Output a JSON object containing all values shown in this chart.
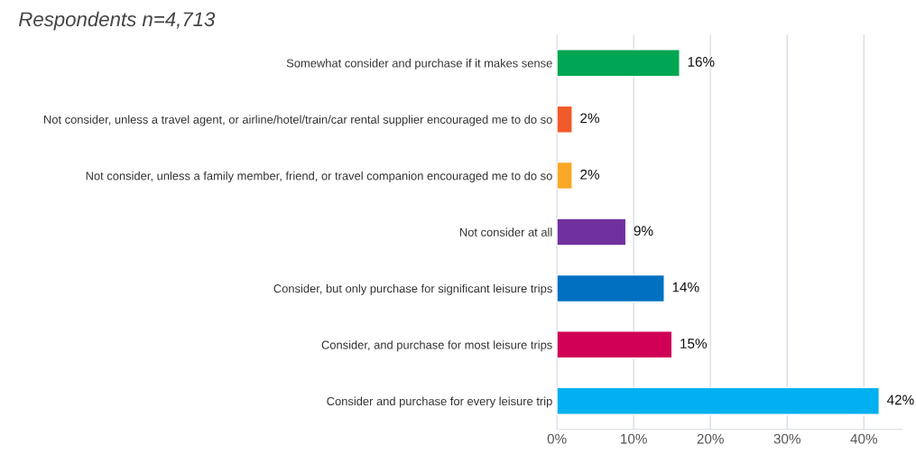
{
  "chart_data": {
    "type": "bar",
    "orientation": "horizontal",
    "categories": [
      "Somewhat consider and purchase if it makes sense",
      "Not consider, unless a travel agent, or airline/hotel/train/car rental supplier encouraged me to do so",
      "Not consider, unless a family member, friend, or travel companion encouraged me to do so",
      "Not consider at all",
      "Consider, but only purchase for significant leisure trips",
      "Consider, and purchase for most leisure trips",
      "Consider and purchase for every leisure trip"
    ],
    "values": [
      16,
      2,
      2,
      9,
      14,
      15,
      42
    ],
    "value_labels": [
      "16%",
      "2%",
      "2%",
      "9%",
      "14%",
      "15%",
      "42%"
    ],
    "colors": [
      "#00a651",
      "#f15a29",
      "#f9a825",
      "#7030a0",
      "#0070c0",
      "#d00056",
      "#00b0f0"
    ],
    "xlim": [
      0,
      45
    ],
    "xticks": [
      {
        "value": 0,
        "label": "0%"
      },
      {
        "value": 10,
        "label": "10%"
      },
      {
        "value": 20,
        "label": "20%"
      },
      {
        "value": 30,
        "label": "30%"
      },
      {
        "value": 40,
        "label": "40%"
      }
    ],
    "grid": "x",
    "annotations": [
      "Respondents n=4,713"
    ]
  }
}
